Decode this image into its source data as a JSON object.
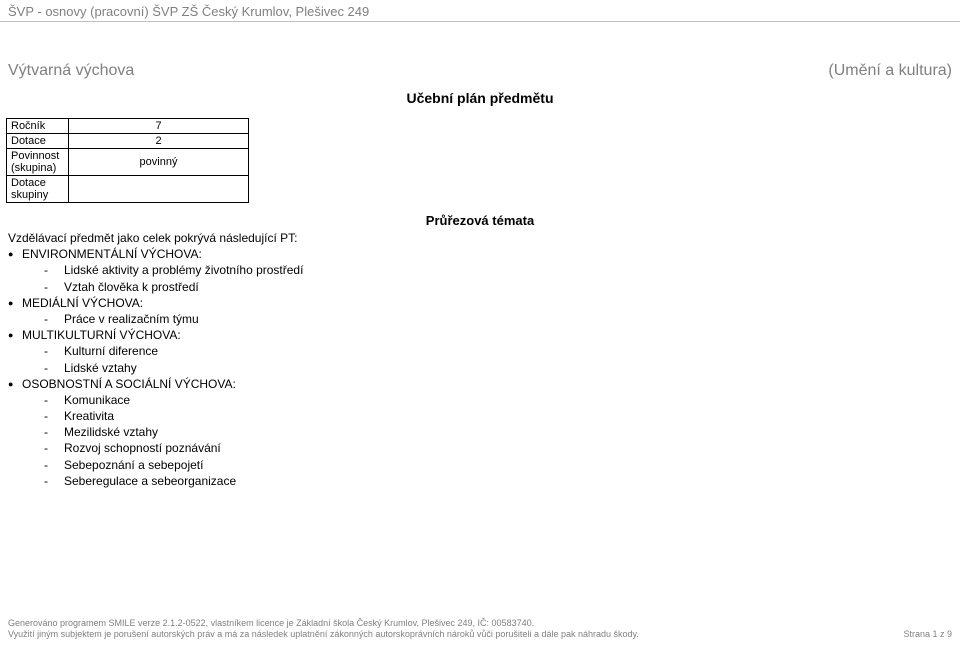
{
  "header": {
    "text": "ŠVP - osnovy (pracovní) ŠVP ZŠ Český Krumlov, Plešivec 249"
  },
  "title": {
    "left": "Výtvarná výchova",
    "right": "(Umění a kultura)",
    "center": "Učební plán předmětu"
  },
  "info_table": {
    "rows": [
      {
        "label": "Ročník",
        "value": "7"
      },
      {
        "label": "Dotace",
        "value": "2"
      },
      {
        "label": "Povinnost (skupina)",
        "value": "povinný"
      },
      {
        "label": "Dotace skupiny",
        "value": ""
      }
    ]
  },
  "section": {
    "heading": "Průřezová témata",
    "intro": "Vzdělávací předmět jako celek pokrývá následující PT:",
    "topics": [
      {
        "title": "ENVIRONMENTÁLNÍ VÝCHOVA:",
        "subs": [
          "Lidské aktivity a problémy životního prostředí",
          "Vztah člověka k prostředí"
        ]
      },
      {
        "title": "MEDIÁLNÍ VÝCHOVA:",
        "subs": [
          "Práce v realizačním týmu"
        ]
      },
      {
        "title": "MULTIKULTURNÍ VÝCHOVA:",
        "subs": [
          "Kulturní diference",
          "Lidské vztahy"
        ]
      },
      {
        "title": "OSOBNOSTNÍ A SOCIÁLNÍ VÝCHOVA:",
        "subs": [
          "Komunikace",
          "Kreativita",
          "Mezilidské vztahy",
          "Rozvoj schopností poznávání",
          "Sebepoznání a sebepojetí",
          "Seberegulace a sebeorganizace"
        ]
      }
    ]
  },
  "footer": {
    "line1": "Generováno programem SMILE verze 2.1.2-0522, vlastníkem licence je Základní škola Český Krumlov, Plešivec 249, IČ: 00583740.",
    "line2": "Využití jiným subjektem je porušení autorských práv a má za následek uplatnění zákonných autorskoprávních nároků vůči porušiteli a dále pak náhradu škody.",
    "page": "Strana 1 z 9"
  }
}
